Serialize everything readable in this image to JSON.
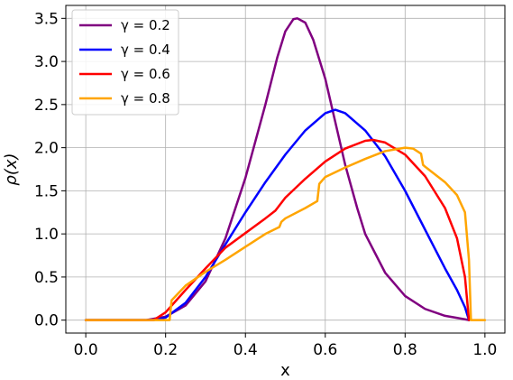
{
  "chart_data": {
    "type": "line",
    "xlabel": "x",
    "ylabel": "ρ(x)",
    "xlim": [
      -0.05,
      1.05
    ],
    "ylim": [
      -0.15,
      3.65
    ],
    "xticks": [
      0.0,
      0.2,
      0.4,
      0.6,
      0.8,
      1.0
    ],
    "xtick_labels": [
      "0.0",
      "0.2",
      "0.4",
      "0.6",
      "0.8",
      "1.0"
    ],
    "yticks": [
      0.0,
      0.5,
      1.0,
      1.5,
      2.0,
      2.5,
      3.0,
      3.5
    ],
    "ytick_labels": [
      "0.0",
      "0.5",
      "1.0",
      "1.5",
      "2.0",
      "2.5",
      "3.0",
      "3.5"
    ],
    "grid": true,
    "legend_position": "top-left",
    "series": [
      {
        "name": "γ = 0.2",
        "color": "#800080",
        "points": [
          [
            0.0,
            0.0
          ],
          [
            0.15,
            0.0
          ],
          [
            0.2,
            0.04
          ],
          [
            0.25,
            0.17
          ],
          [
            0.3,
            0.45
          ],
          [
            0.35,
            0.95
          ],
          [
            0.4,
            1.65
          ],
          [
            0.45,
            2.5
          ],
          [
            0.48,
            3.05
          ],
          [
            0.5,
            3.35
          ],
          [
            0.52,
            3.49
          ],
          [
            0.53,
            3.5
          ],
          [
            0.55,
            3.45
          ],
          [
            0.57,
            3.25
          ],
          [
            0.6,
            2.8
          ],
          [
            0.63,
            2.2
          ],
          [
            0.65,
            1.8
          ],
          [
            0.68,
            1.3
          ],
          [
            0.7,
            1.0
          ],
          [
            0.75,
            0.55
          ],
          [
            0.8,
            0.28
          ],
          [
            0.85,
            0.13
          ],
          [
            0.9,
            0.05
          ],
          [
            0.95,
            0.01
          ],
          [
            0.96,
            0.0
          ]
        ]
      },
      {
        "name": "γ = 0.4",
        "color": "#0000ff",
        "points": [
          [
            0.0,
            0.0
          ],
          [
            0.17,
            0.0
          ],
          [
            0.2,
            0.03
          ],
          [
            0.25,
            0.2
          ],
          [
            0.3,
            0.5
          ],
          [
            0.35,
            0.88
          ],
          [
            0.4,
            1.25
          ],
          [
            0.45,
            1.6
          ],
          [
            0.5,
            1.92
          ],
          [
            0.55,
            2.2
          ],
          [
            0.6,
            2.4
          ],
          [
            0.625,
            2.44
          ],
          [
            0.65,
            2.4
          ],
          [
            0.7,
            2.2
          ],
          [
            0.75,
            1.9
          ],
          [
            0.8,
            1.5
          ],
          [
            0.85,
            1.05
          ],
          [
            0.9,
            0.6
          ],
          [
            0.93,
            0.35
          ],
          [
            0.95,
            0.15
          ],
          [
            0.96,
            0.0
          ]
        ]
      },
      {
        "name": "γ = 0.6",
        "color": "#ff0000",
        "points": [
          [
            0.0,
            0.0
          ],
          [
            0.17,
            0.0
          ],
          [
            0.2,
            0.09
          ],
          [
            0.25,
            0.35
          ],
          [
            0.3,
            0.6
          ],
          [
            0.35,
            0.84
          ],
          [
            0.4,
            1.01
          ],
          [
            0.45,
            1.18
          ],
          [
            0.475,
            1.27
          ],
          [
            0.48,
            1.3
          ],
          [
            0.5,
            1.42
          ],
          [
            0.55,
            1.64
          ],
          [
            0.6,
            1.84
          ],
          [
            0.65,
            1.99
          ],
          [
            0.7,
            2.08
          ],
          [
            0.72,
            2.09
          ],
          [
            0.75,
            2.06
          ],
          [
            0.8,
            1.92
          ],
          [
            0.85,
            1.67
          ],
          [
            0.9,
            1.3
          ],
          [
            0.93,
            0.95
          ],
          [
            0.95,
            0.5
          ],
          [
            0.96,
            0.0
          ]
        ]
      },
      {
        "name": "γ = 0.8",
        "color": "#ffa500",
        "points": [
          [
            0.0,
            0.0
          ],
          [
            0.21,
            0.0
          ],
          [
            0.215,
            0.23
          ],
          [
            0.25,
            0.4
          ],
          [
            0.3,
            0.56
          ],
          [
            0.35,
            0.7
          ],
          [
            0.4,
            0.85
          ],
          [
            0.45,
            1.0
          ],
          [
            0.485,
            1.08
          ],
          [
            0.49,
            1.14
          ],
          [
            0.5,
            1.18
          ],
          [
            0.55,
            1.3
          ],
          [
            0.58,
            1.38
          ],
          [
            0.585,
            1.58
          ],
          [
            0.6,
            1.66
          ],
          [
            0.65,
            1.77
          ],
          [
            0.7,
            1.87
          ],
          [
            0.75,
            1.96
          ],
          [
            0.8,
            2.0
          ],
          [
            0.82,
            1.99
          ],
          [
            0.84,
            1.93
          ],
          [
            0.845,
            1.8
          ],
          [
            0.85,
            1.78
          ],
          [
            0.9,
            1.6
          ],
          [
            0.93,
            1.45
          ],
          [
            0.95,
            1.25
          ],
          [
            0.96,
            0.7
          ],
          [
            0.965,
            0.0
          ],
          [
            1.0,
            0.0
          ]
        ]
      }
    ]
  }
}
